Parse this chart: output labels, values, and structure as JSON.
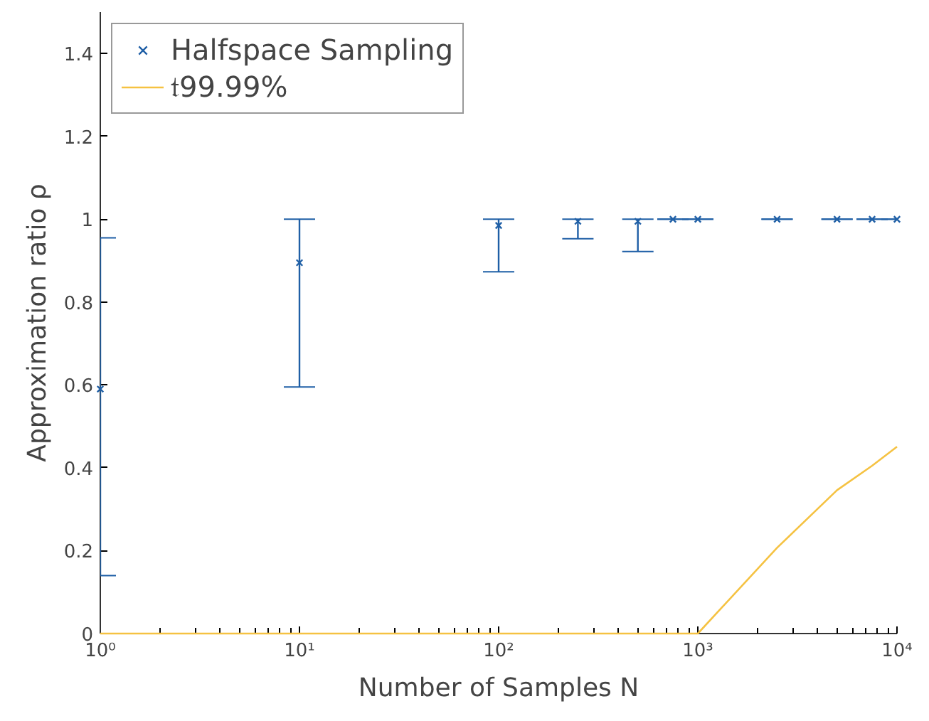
{
  "chart_data": {
    "type": "scatter",
    "xlabel": "Number of Samples N",
    "ylabel": "Approximation ratio ρ",
    "log": "x",
    "xlim": [
      1,
      10000
    ],
    "xticks": [
      {
        "value": 1,
        "label": "10⁰"
      },
      {
        "value": 10,
        "label": "10¹"
      },
      {
        "value": 100,
        "label": "10²"
      },
      {
        "value": 1000,
        "label": "10³"
      },
      {
        "value": 10000,
        "label": "10⁴"
      }
    ],
    "ylim": [
      0,
      1.5
    ],
    "yticks": [
      0,
      0.2,
      0.4,
      0.6,
      0.8,
      1,
      1.2,
      1.4
    ],
    "grid": false,
    "legend": "top left",
    "series": [
      {
        "name": "Halfspace Sampling",
        "marker": "cross",
        "color": "#1f5fa6",
        "x": [
          1,
          10,
          100,
          250,
          500,
          750,
          1000,
          2500,
          5000,
          7500,
          10000
        ],
        "values": [
          0.59,
          0.895,
          0.985,
          0.995,
          0.995,
          1.0,
          1.0,
          1.0,
          1.0,
          1.0,
          1.0
        ],
        "errors": [
          [
            0.14,
            0.955
          ],
          [
            0.595,
            1.0
          ],
          [
            0.873,
            1.0
          ],
          [
            0.953,
            1.0
          ],
          [
            0.922,
            1.0
          ],
          [
            1.0,
            1.0
          ],
          [
            1.0,
            1.0
          ],
          [
            1.0,
            1.0
          ],
          [
            1.0,
            1.0
          ],
          [
            1.0,
            1.0
          ],
          [
            1.0,
            1.0
          ]
        ]
      },
      {
        "name": "𝔱99.99%",
        "type": "line",
        "marker": "none",
        "color": "#f5c242",
        "x": [
          1,
          10,
          100,
          250,
          500,
          750,
          1000,
          2500,
          5000,
          7500,
          10000
        ],
        "values": [
          0,
          0,
          0,
          0,
          0,
          0,
          0,
          0.207,
          0.346,
          0.405,
          0.451
        ]
      }
    ]
  }
}
